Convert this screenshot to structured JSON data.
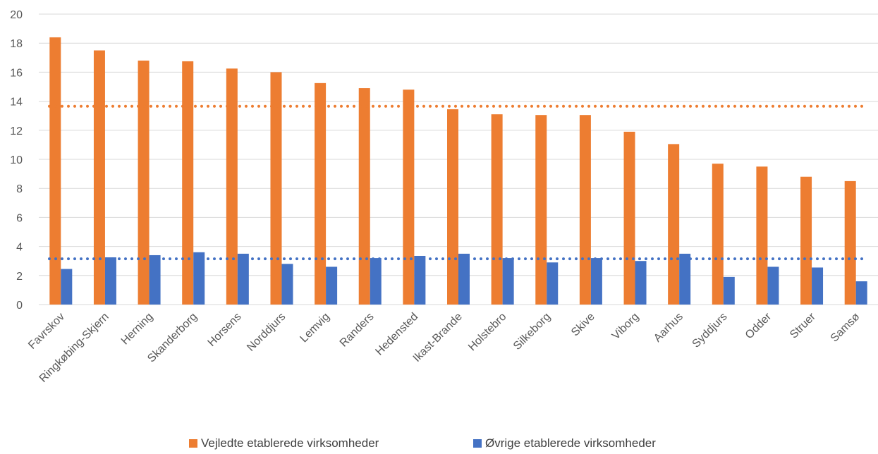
{
  "chart_data": {
    "type": "bar",
    "title": "",
    "xlabel": "",
    "ylabel": "",
    "ylim": [
      0,
      20
    ],
    "yticks": [
      0,
      2,
      4,
      6,
      8,
      10,
      12,
      14,
      16,
      18,
      20
    ],
    "grid": true,
    "legend_position": "bottom",
    "categories": [
      "Favrskov",
      "Ringkøbing-Skjern",
      "Herning",
      "Skanderborg",
      "Horsens",
      "Norddjurs",
      "Lemvig",
      "Randers",
      "Hedensted",
      "Ikast-Brande",
      "Holstebro",
      "Silkeborg",
      "Skive",
      "Viborg",
      "Aarhus",
      "Syddjurs",
      "Odder",
      "Struer",
      "Samsø"
    ],
    "series": [
      {
        "name": "Vejledte etablerede virksomheder",
        "color": "#ed7d31",
        "values": [
          18.4,
          17.5,
          16.8,
          16.75,
          16.25,
          16.0,
          15.25,
          14.9,
          14.8,
          13.45,
          13.1,
          13.05,
          13.05,
          11.9,
          11.05,
          9.7,
          9.5,
          8.8,
          8.5
        ],
        "average": 13.65
      },
      {
        "name": "Øvrige etablerede virksomheder",
        "color": "#4472c4",
        "values": [
          2.45,
          3.25,
          3.4,
          3.6,
          3.5,
          2.8,
          2.6,
          3.2,
          3.35,
          3.5,
          3.2,
          2.9,
          3.2,
          3.0,
          3.5,
          1.9,
          2.6,
          2.55,
          1.6
        ],
        "average": 3.15
      }
    ]
  }
}
